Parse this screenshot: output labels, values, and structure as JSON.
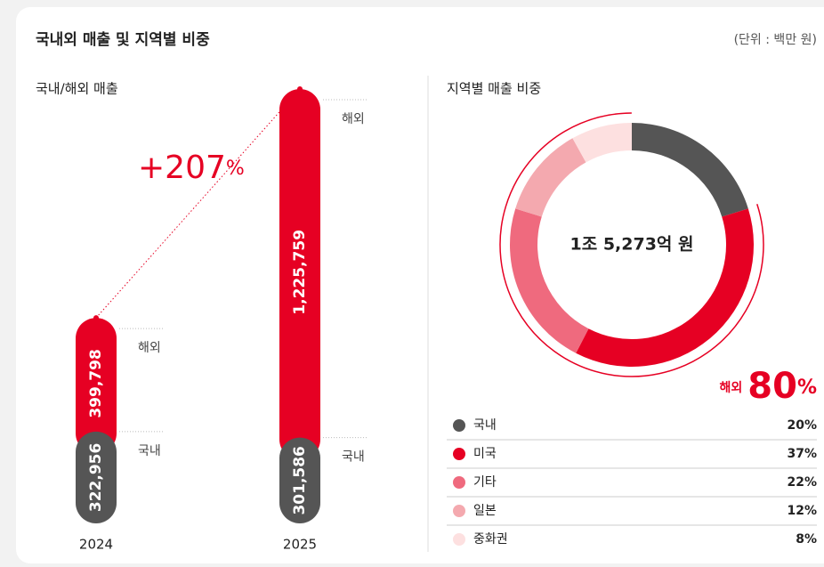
{
  "title": "국내외 매출 및 지역별 비중",
  "unit_note": "(단위 : 백만 원)",
  "chart_data": [
    {
      "type": "bar",
      "stacked": true,
      "title": "국내/해외 매출",
      "categories": [
        "2024",
        "2025"
      ],
      "series": [
        {
          "name": "국내",
          "color": "#555555",
          "values": [
            322956,
            301586
          ],
          "value_labels": [
            "322,956",
            "301,586"
          ]
        },
        {
          "name": "해외",
          "color": "#e60023",
          "values": [
            399798,
            1225759
          ],
          "value_labels": [
            "399,798",
            "1,225,759"
          ]
        }
      ],
      "annotation": {
        "text": "+207",
        "unit": "%"
      }
    },
    {
      "type": "pie",
      "donut": true,
      "title": "지역별 매출 비중",
      "center_label": "1조 5,273억 원",
      "categories": [
        "국내",
        "미국",
        "기타",
        "일본",
        "중화권"
      ],
      "values": [
        20,
        37,
        22,
        12,
        8
      ],
      "value_labels": [
        "20%",
        "37%",
        "22%",
        "12%",
        "8%"
      ],
      "colors": [
        "#555555",
        "#e60023",
        "#ef6a7e",
        "#f4a9af",
        "#fde0e0"
      ],
      "highlight": {
        "label": "해외",
        "value": 80,
        "unit": "%"
      }
    }
  ]
}
